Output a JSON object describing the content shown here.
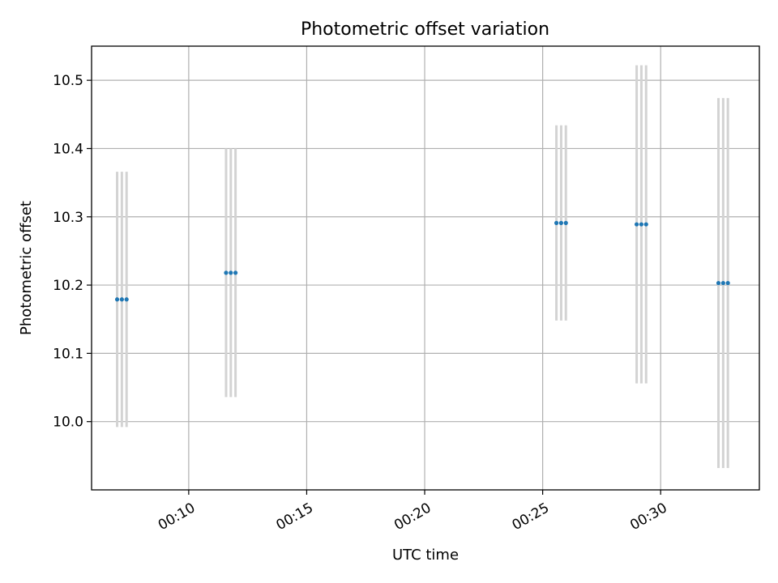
{
  "chart_data": {
    "type": "scatter",
    "title": "Photometric offset variation",
    "xlabel": "UTC time",
    "ylabel": "Photometric offset",
    "x_tick_labels": [
      "00:10",
      "00:15",
      "00:20",
      "00:25",
      "00:30"
    ],
    "y_tick_labels": [
      "10.0",
      "10.1",
      "10.2",
      "10.3",
      "10.4",
      "10.5"
    ],
    "xlim": [
      "00:05:53",
      "00:34:11"
    ],
    "ylim": [
      9.9,
      10.55
    ],
    "grid": true,
    "colors": {
      "points": "#1f77b4",
      "errorbars": "#d3d3d3",
      "grid": "#b0b0b0"
    },
    "groups": [
      {
        "times": [
          "00:06:58",
          "00:07:10",
          "00:07:22"
        ],
        "offset": 10.179,
        "err": 0.187
      },
      {
        "times": [
          "00:11:35",
          "00:11:47",
          "00:11:59"
        ],
        "offset": 10.218,
        "err": 0.182
      },
      {
        "times": [
          "00:25:35",
          "00:25:47",
          "00:25:59"
        ],
        "offset": 10.291,
        "err": 0.143
      },
      {
        "times": [
          "00:28:59",
          "00:29:11",
          "00:29:23"
        ],
        "offset": 10.289,
        "err": 0.233
      },
      {
        "times": [
          "00:32:27",
          "00:32:39",
          "00:32:51"
        ],
        "offset": 10.203,
        "err": 0.271
      }
    ]
  }
}
